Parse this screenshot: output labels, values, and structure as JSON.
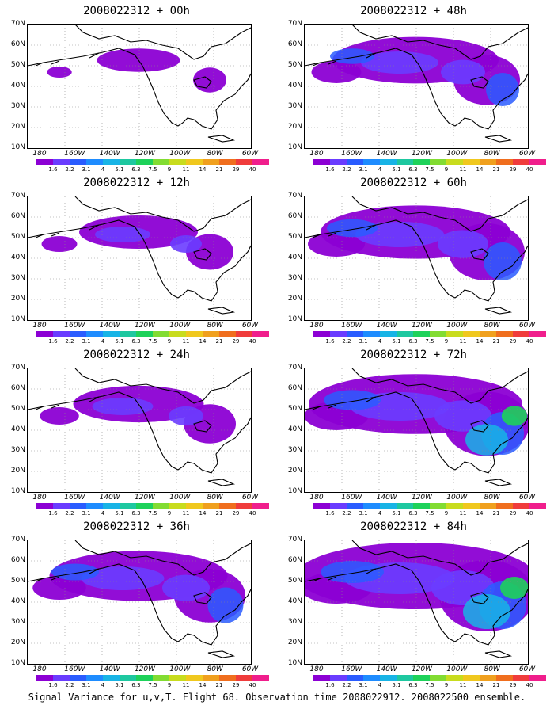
{
  "panels": [
    {
      "title": "2008022312 + 00h",
      "level": 0.35
    },
    {
      "title": "2008022312 + 12h",
      "level": 0.5
    },
    {
      "title": "2008022312 + 24h",
      "level": 0.55
    },
    {
      "title": "2008022312 + 36h",
      "level": 0.75
    },
    {
      "title": "2008022312 + 48h",
      "level": 0.7
    },
    {
      "title": "2008022312 + 60h",
      "level": 0.8
    },
    {
      "title": "2008022312 + 72h",
      "level": 0.9
    },
    {
      "title": "2008022312 + 84h",
      "level": 1.0
    }
  ],
  "lat_labels": [
    "70N",
    "60N",
    "50N",
    "40N",
    "30N",
    "20N",
    "10N"
  ],
  "lon_labels": [
    "180",
    "160W",
    "140W",
    "120W",
    "100W",
    "80W",
    "60W"
  ],
  "colorbar": {
    "colors": [
      "#8c00d4",
      "#6a3cff",
      "#2a5cff",
      "#1e8cff",
      "#18b4e6",
      "#1ec8a0",
      "#1ed25a",
      "#82dc32",
      "#c8dc1e",
      "#f0c81e",
      "#f0a01e",
      "#f06e1e",
      "#f03c3c",
      "#f01e8c"
    ],
    "labels": [
      "1.6",
      "2.2",
      "3.1",
      "4",
      "5.1",
      "6.3",
      "7.5",
      "9",
      "11",
      "14",
      "21",
      "29",
      "40"
    ]
  },
  "caption": "Signal Variance for u,v,T. Flight 68. Observation time 2008022912. 2008022500 ensemble."
}
